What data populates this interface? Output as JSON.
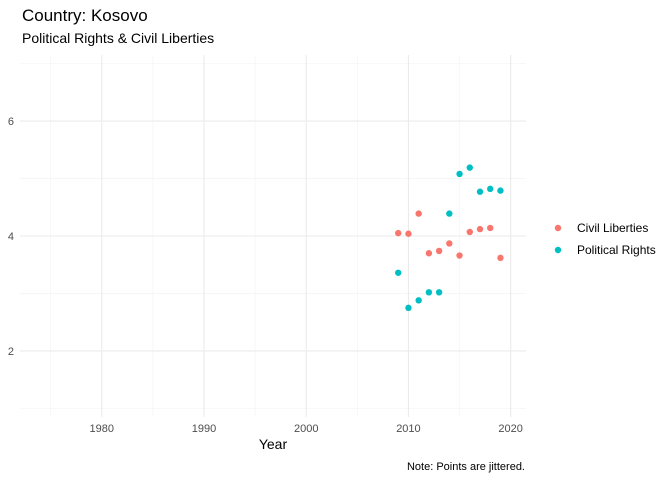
{
  "chart_data": {
    "type": "scatter",
    "title": "Country: Kosovo",
    "subtitle": "Political Rights & Civil Liberties",
    "xlabel": "Year",
    "ylabel": "",
    "caption": "Note: Points are jittered.",
    "xlim": [
      1972,
      2021.5
    ],
    "ylim": [
      0.85,
      7.15
    ],
    "x_ticks": [
      1980,
      1990,
      2000,
      2010,
      2020
    ],
    "x_minor_ticks": [
      1975,
      1985,
      1995,
      2005,
      2015
    ],
    "y_ticks": [
      2,
      4,
      6
    ],
    "y_minor_ticks": [
      1,
      3,
      5,
      7
    ],
    "grid": true,
    "legend_position": "right",
    "series": [
      {
        "name": "Civil Liberties",
        "color": "#F8766D",
        "points": [
          {
            "x": 2009.0,
            "y": 4.05
          },
          {
            "x": 2010.0,
            "y": 4.04
          },
          {
            "x": 2011.0,
            "y": 4.39
          },
          {
            "x": 2012.0,
            "y": 3.7
          },
          {
            "x": 2013.0,
            "y": 3.74
          },
          {
            "x": 2014.0,
            "y": 3.87
          },
          {
            "x": 2015.0,
            "y": 3.66
          },
          {
            "x": 2016.0,
            "y": 4.07
          },
          {
            "x": 2017.0,
            "y": 4.12
          },
          {
            "x": 2018.0,
            "y": 4.14
          },
          {
            "x": 2019.0,
            "y": 3.62
          }
        ]
      },
      {
        "name": "Political Rights",
        "color": "#00BFC4",
        "points": [
          {
            "x": 2009.0,
            "y": 3.36
          },
          {
            "x": 2010.0,
            "y": 2.75
          },
          {
            "x": 2011.0,
            "y": 2.88
          },
          {
            "x": 2012.0,
            "y": 3.02
          },
          {
            "x": 2013.0,
            "y": 3.02
          },
          {
            "x": 2014.0,
            "y": 4.39
          },
          {
            "x": 2015.0,
            "y": 5.08
          },
          {
            "x": 2016.0,
            "y": 5.19
          },
          {
            "x": 2017.0,
            "y": 4.77
          },
          {
            "x": 2018.0,
            "y": 4.82
          },
          {
            "x": 2019.0,
            "y": 4.79
          }
        ]
      }
    ]
  }
}
